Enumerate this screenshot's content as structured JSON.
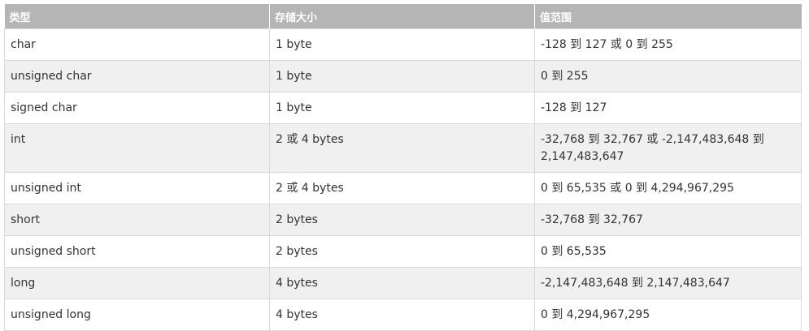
{
  "table": {
    "headers": [
      "类型",
      "存储大小",
      "值范围"
    ],
    "rows": [
      [
        "char",
        "1 byte",
        "-128 到 127 或 0 到 255"
      ],
      [
        "unsigned char",
        "1 byte",
        "0 到 255"
      ],
      [
        "signed char",
        "1 byte",
        "-128 到 127"
      ],
      [
        "int",
        "2 或 4 bytes",
        "-32,768 到 32,767 或 -2,147,483,648 到 2,147,483,647"
      ],
      [
        "unsigned int",
        "2 或 4 bytes",
        "0 到 65,535 或 0 到 4,294,967,295"
      ],
      [
        "short",
        "2 bytes",
        "-32,768 到 32,767"
      ],
      [
        "unsigned short",
        "2 bytes",
        "0 到 65,535"
      ],
      [
        "long",
        "4 bytes",
        "-2,147,483,648 到 2,147,483,647"
      ],
      [
        "unsigned long",
        "4 bytes",
        "0 到 4,294,967,295"
      ]
    ]
  }
}
